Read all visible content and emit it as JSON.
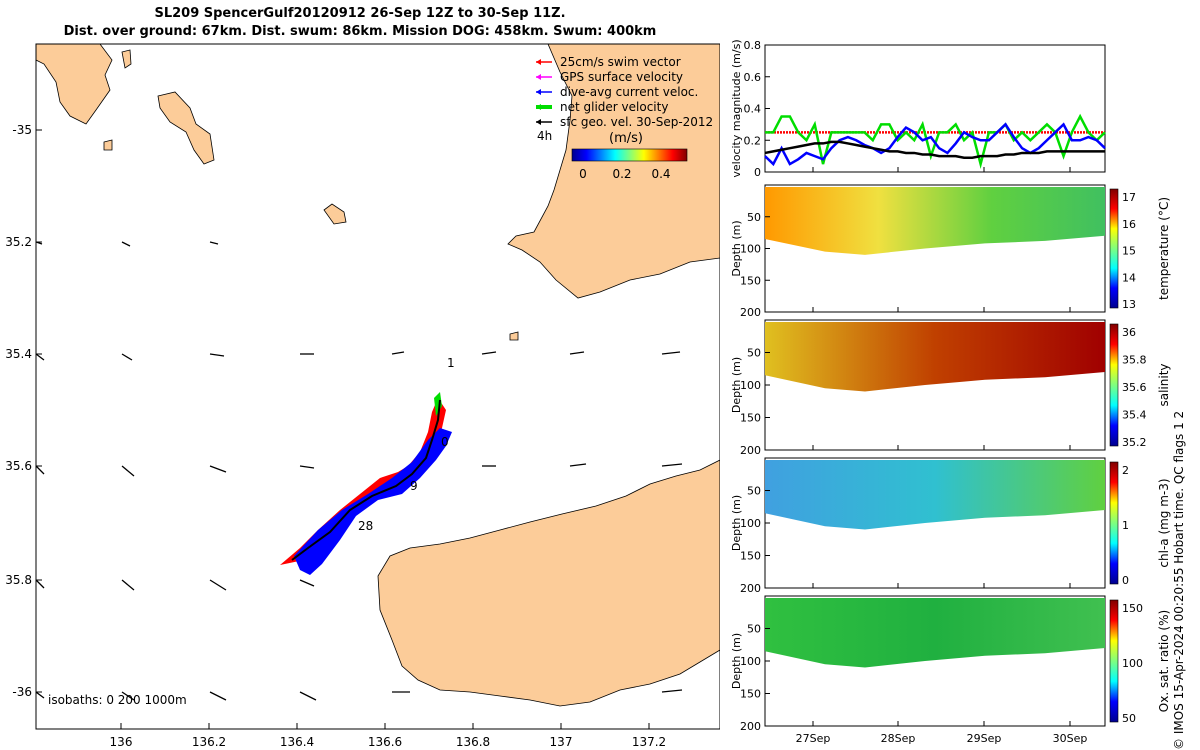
{
  "header": {
    "title_line1": "SL209 SpencerGulf20120912 26-Sep 12Z to 30-Sep 11Z.",
    "title_line2": "Dist. over ground: 67km. Dist. swum: 86km. Mission DOG: 458km. Swum: 400km"
  },
  "footer": {
    "credit": "© IMOS 15-Apr-2024 00:20:55 Hobart time. QC flags 1  2"
  },
  "colors": {
    "land": "#fccc99",
    "sea": "#ffffff",
    "swim": "#ff0000",
    "gps": "#ff00ff",
    "dive_avg": "#0000ff",
    "net": "#00dd00",
    "geo": "#000000"
  },
  "map": {
    "x_ticks": [
      "136",
      "136.2",
      "136.4",
      "136.6",
      "136.8",
      "137",
      "137.2"
    ],
    "y_ticks": [
      "-35",
      "35.2",
      "35.4",
      "35.6",
      "35.8",
      "-36"
    ],
    "legend": [
      {
        "label": "25cm/s swim vector",
        "color": "#ff0000"
      },
      {
        "label": "GPS surface velocity",
        "color": "#ff00ff"
      },
      {
        "label": "dive-avg current veloc.",
        "color": "#0000ff"
      },
      {
        "label": "net glider velocity",
        "color": "#00dd00"
      },
      {
        "label": "sfc geo. vel. 30-Sep-2012",
        "color": "#000000"
      }
    ],
    "speed_label": "4h",
    "colorbar_title": "(m/s)",
    "colorbar_ticks": [
      "0",
      "0.2",
      "0.4"
    ],
    "track_labels": [
      "1",
      "0",
      "9",
      "28"
    ],
    "isobaths": "isobaths: 0   200  1000m"
  },
  "chart_data": [
    {
      "type": "line",
      "ylabel": "velocity magnitude (m/s)",
      "ylim": [
        0,
        0.8
      ],
      "y_ticks": [
        "0",
        "0.2",
        "0.4",
        "0.6",
        "0.8"
      ],
      "x_ticks": [
        "27Sep",
        "28Sep",
        "29Sep",
        "30Sep"
      ],
      "series": [
        {
          "color": "#ff0000",
          "values": [
            0.25,
            0.25,
            0.25,
            0.25,
            0.25,
            0.25,
            0.25,
            0.25,
            0.25,
            0.25,
            0.25,
            0.25,
            0.25,
            0.25,
            0.25,
            0.25,
            0.25,
            0.25,
            0.25,
            0.25,
            0.25,
            0.25,
            0.25,
            0.25,
            0.25,
            0.25,
            0.25,
            0.25,
            0.25,
            0.25,
            0.25,
            0.25,
            0.25,
            0.25,
            0.25,
            0.25,
            0.25,
            0.25,
            0.25,
            0.25,
            0.25,
            0.25
          ]
        },
        {
          "color": "#00dd00",
          "values": [
            0.25,
            0.25,
            0.35,
            0.35,
            0.25,
            0.2,
            0.3,
            0.05,
            0.25,
            0.25,
            0.25,
            0.25,
            0.25,
            0.2,
            0.3,
            0.3,
            0.2,
            0.25,
            0.2,
            0.3,
            0.1,
            0.25,
            0.25,
            0.3,
            0.2,
            0.25,
            0.05,
            0.25,
            0.25,
            0.3,
            0.2,
            0.25,
            0.2,
            0.25,
            0.3,
            0.25,
            0.1,
            0.25,
            0.35,
            0.25,
            0.2,
            0.25
          ]
        },
        {
          "color": "#0000ff",
          "values": [
            0.1,
            0.05,
            0.15,
            0.05,
            0.08,
            0.12,
            0.1,
            0.08,
            0.15,
            0.2,
            0.22,
            0.2,
            0.17,
            0.15,
            0.12,
            0.15,
            0.22,
            0.28,
            0.25,
            0.2,
            0.22,
            0.15,
            0.12,
            0.18,
            0.25,
            0.22,
            0.2,
            0.2,
            0.25,
            0.3,
            0.22,
            0.15,
            0.12,
            0.15,
            0.2,
            0.25,
            0.3,
            0.2,
            0.2,
            0.22,
            0.2,
            0.15
          ]
        },
        {
          "color": "#000000",
          "values": [
            0.12,
            0.13,
            0.14,
            0.15,
            0.16,
            0.17,
            0.18,
            0.18,
            0.19,
            0.19,
            0.18,
            0.17,
            0.16,
            0.15,
            0.14,
            0.13,
            0.13,
            0.12,
            0.12,
            0.11,
            0.11,
            0.1,
            0.1,
            0.1,
            0.09,
            0.09,
            0.1,
            0.1,
            0.1,
            0.11,
            0.11,
            0.12,
            0.12,
            0.12,
            0.13,
            0.13,
            0.13,
            0.13,
            0.13,
            0.13,
            0.13,
            0.13
          ]
        }
      ]
    },
    {
      "type": "heatmap",
      "ylabel": "Depth (m)",
      "clabel": "temperature (°C)",
      "cticks": [
        "13",
        "14",
        "15",
        "16",
        "17"
      ],
      "y_ticks": [
        "50",
        "100",
        "150",
        "200"
      ]
    },
    {
      "type": "heatmap",
      "ylabel": "Depth (m)",
      "clabel": "salinity",
      "cticks": [
        "35.2",
        "35.4",
        "35.6",
        "35.8",
        "36"
      ],
      "y_ticks": [
        "50",
        "100",
        "150",
        "200"
      ]
    },
    {
      "type": "heatmap",
      "ylabel": "Depth (m)",
      "clabel": "chl-a (mg m-3)",
      "cticks": [
        "0",
        "1",
        "2"
      ],
      "y_ticks": [
        "50",
        "100",
        "150",
        "200"
      ]
    },
    {
      "type": "heatmap",
      "ylabel": "Depth (m)",
      "clabel": "Ox. sat. ratio (%)",
      "cticks": [
        "50",
        "100",
        "150"
      ],
      "y_ticks": [
        "50",
        "100",
        "150",
        "200"
      ]
    }
  ]
}
